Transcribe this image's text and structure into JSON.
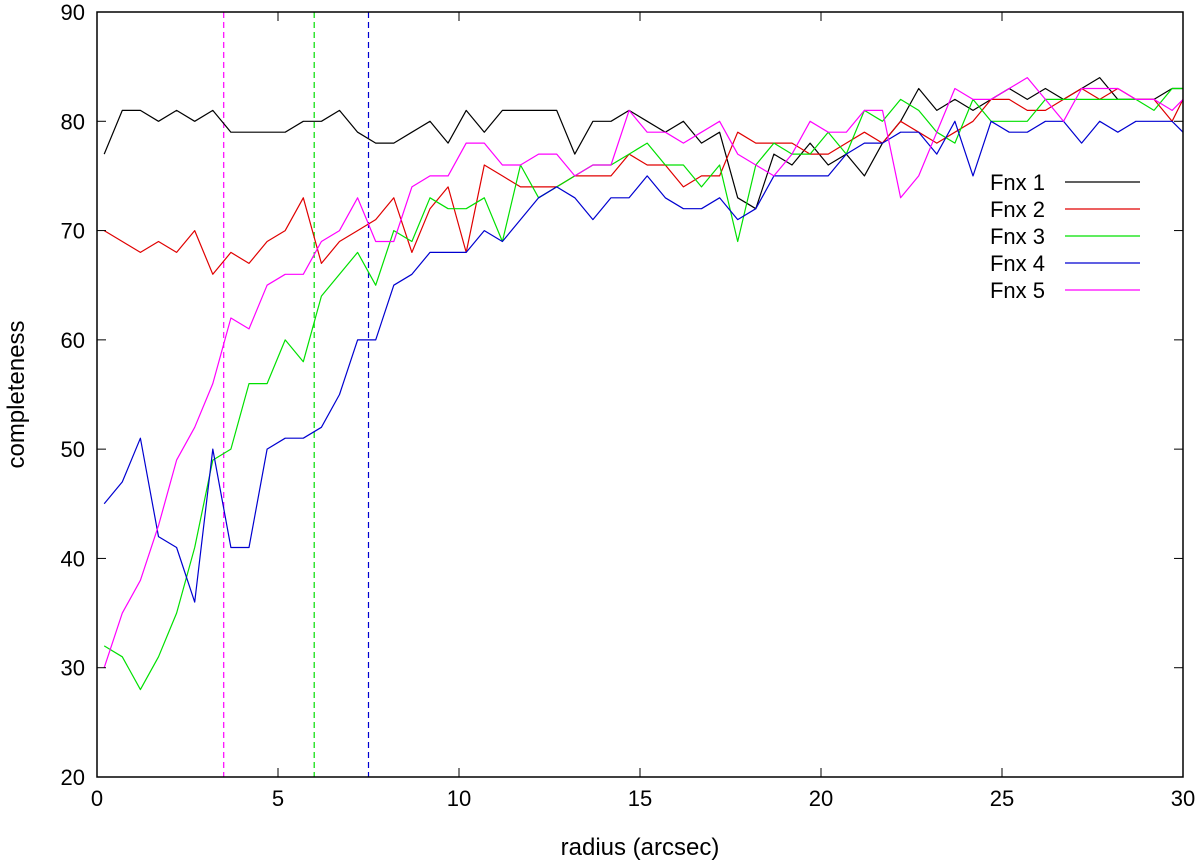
{
  "chart_data": {
    "type": "line",
    "title": "",
    "xlabel": "radius (arcsec)",
    "ylabel": "completeness",
    "xlim": [
      0,
      30
    ],
    "ylim": [
      20,
      90
    ],
    "xticks": [
      0,
      5,
      10,
      15,
      20,
      25,
      30
    ],
    "yticks": [
      20,
      30,
      40,
      50,
      60,
      70,
      80,
      90
    ],
    "grid": false,
    "legend_position": "top-right",
    "x": [
      0.2,
      0.7,
      1.2,
      1.7,
      2.2,
      2.7,
      3.2,
      3.7,
      4.2,
      4.7,
      5.2,
      5.7,
      6.2,
      6.7,
      7.2,
      7.7,
      8.2,
      8.7,
      9.2,
      9.7,
      10.2,
      10.7,
      11.2,
      11.7,
      12.2,
      12.7,
      13.2,
      13.7,
      14.2,
      14.7,
      15.2,
      15.7,
      16.2,
      16.7,
      17.2,
      17.7,
      18.2,
      18.7,
      19.2,
      19.7,
      20.2,
      20.7,
      21.2,
      21.7,
      22.2,
      22.7,
      23.2,
      23.7,
      24.2,
      24.7,
      25.2,
      25.7,
      26.2,
      26.7,
      27.2,
      27.7,
      28.2,
      28.7,
      29.2,
      29.7,
      30.0
    ],
    "series": [
      {
        "name": "Fnx 1",
        "color": "#000000",
        "values": [
          77,
          81,
          81,
          80,
          81,
          80,
          81,
          79,
          79,
          79,
          79,
          80,
          80,
          81,
          79,
          78,
          78,
          79,
          80,
          78,
          81,
          79,
          81,
          81,
          81,
          81,
          77,
          80,
          80,
          81,
          80,
          79,
          80,
          78,
          79,
          73,
          72,
          77,
          76,
          78,
          76,
          77,
          75,
          78,
          80,
          83,
          81,
          82,
          81,
          82,
          83,
          82,
          83,
          82,
          83,
          84,
          82,
          82,
          82,
          83,
          83
        ]
      },
      {
        "name": "Fnx 2",
        "color": "#e00000",
        "values": [
          70,
          69,
          68,
          69,
          68,
          70,
          66,
          68,
          67,
          69,
          70,
          73,
          67,
          69,
          70,
          71,
          73,
          68,
          72,
          74,
          68,
          76,
          75,
          74,
          74,
          74,
          75,
          75,
          75,
          77,
          76,
          76,
          74,
          75,
          75,
          79,
          78,
          78,
          78,
          77,
          77,
          78,
          79,
          78,
          80,
          79,
          78,
          79,
          80,
          82,
          82,
          81,
          81,
          82,
          83,
          82,
          83,
          82,
          82,
          80,
          82
        ]
      },
      {
        "name": "Fnx 3",
        "color": "#00e000",
        "values": [
          32,
          31,
          28,
          31,
          35,
          41,
          49,
          50,
          56,
          56,
          60,
          58,
          64,
          66,
          68,
          65,
          70,
          69,
          73,
          72,
          72,
          73,
          69,
          76,
          73,
          74,
          75,
          76,
          76,
          77,
          78,
          76,
          76,
          74,
          76,
          69,
          76,
          78,
          77,
          77,
          79,
          77,
          81,
          80,
          82,
          81,
          79,
          78,
          82,
          80,
          80,
          80,
          82,
          82,
          82,
          82,
          82,
          82,
          81,
          83,
          83
        ]
      },
      {
        "name": "Fnx 4",
        "color": "#0000d0",
        "values": [
          45,
          47,
          51,
          42,
          41,
          36,
          50,
          41,
          41,
          50,
          51,
          51,
          52,
          55,
          60,
          60,
          65,
          66,
          68,
          68,
          68,
          70,
          69,
          71,
          73,
          74,
          73,
          71,
          73,
          73,
          75,
          73,
          72,
          72,
          73,
          71,
          72,
          75,
          75,
          75,
          75,
          77,
          78,
          78,
          79,
          79,
          77,
          80,
          75,
          80,
          79,
          79,
          80,
          80,
          78,
          80,
          79,
          80,
          80,
          80,
          79
        ]
      },
      {
        "name": "Fnx 5",
        "color": "#ff00ff",
        "values": [
          30,
          35,
          38,
          43,
          49,
          52,
          56,
          62,
          61,
          65,
          66,
          66,
          69,
          70,
          73,
          69,
          69,
          74,
          75,
          75,
          78,
          78,
          76,
          76,
          77,
          77,
          75,
          76,
          76,
          81,
          79,
          79,
          78,
          79,
          80,
          77,
          76,
          75,
          77,
          80,
          79,
          79,
          81,
          81,
          73,
          75,
          79,
          83,
          82,
          82,
          83,
          84,
          82,
          80,
          83,
          83,
          83,
          82,
          82,
          81,
          82
        ]
      }
    ],
    "vertical_lines": [
      {
        "x": 3.5,
        "color": "#ff00ff",
        "style": "dashed"
      },
      {
        "x": 6.0,
        "color": "#00e000",
        "style": "dashed"
      },
      {
        "x": 7.5,
        "color": "#0000d0",
        "style": "dashed"
      }
    ]
  }
}
